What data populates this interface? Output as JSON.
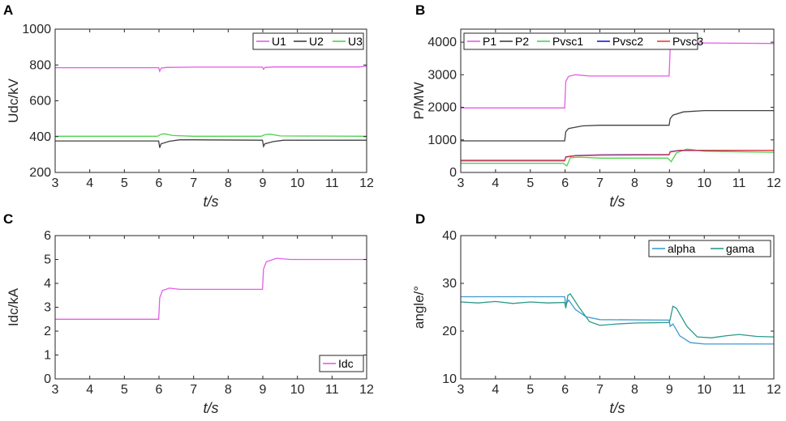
{
  "chart_data": [
    {
      "panel": "A",
      "type": "line",
      "xlabel": "t/s",
      "ylabel": "Udc/kV",
      "xlim": [
        3,
        12
      ],
      "ylim": [
        200,
        1000
      ],
      "xticks": [
        3,
        4,
        5,
        6,
        7,
        8,
        9,
        10,
        11,
        12
      ],
      "yticks": [
        200,
        400,
        600,
        800,
        1000
      ],
      "legend_position": "top-right",
      "series": [
        {
          "name": "U1",
          "color": "#e65ce6",
          "points": [
            [
              3,
              785
            ],
            [
              5.99,
              785
            ],
            [
              6.02,
              765
            ],
            [
              6.06,
              782
            ],
            [
              6.2,
              786
            ],
            [
              7,
              788
            ],
            [
              8.99,
              788
            ],
            [
              9.02,
              776
            ],
            [
              9.06,
              786
            ],
            [
              9.3,
              789
            ],
            [
              11.8,
              789
            ],
            [
              12,
              794
            ]
          ]
        },
        {
          "name": "U2",
          "color": "#404040",
          "points": [
            [
              3,
              376
            ],
            [
              5.99,
              376
            ],
            [
              6.02,
              338
            ],
            [
              6.06,
              360
            ],
            [
              6.3,
              374
            ],
            [
              6.6,
              382
            ],
            [
              7,
              382
            ],
            [
              8.99,
              380
            ],
            [
              9.02,
              345
            ],
            [
              9.06,
              360
            ],
            [
              9.3,
              372
            ],
            [
              9.6,
              380
            ],
            [
              12,
              380
            ]
          ]
        },
        {
          "name": "U3",
          "color": "#4dd24d",
          "points": [
            [
              3,
              402
            ],
            [
              5.95,
              402
            ],
            [
              6.05,
              412
            ],
            [
              6.15,
              416
            ],
            [
              6.4,
              406
            ],
            [
              7,
              402
            ],
            [
              8.95,
              402
            ],
            [
              9.05,
              410
            ],
            [
              9.2,
              414
            ],
            [
              9.5,
              404
            ],
            [
              12,
              402
            ]
          ]
        }
      ]
    },
    {
      "panel": "B",
      "type": "line",
      "xlabel": "t/s",
      "ylabel": "P/MW",
      "xlim": [
        3,
        12
      ],
      "ylim": [
        0,
        4400
      ],
      "xticks": [
        3,
        4,
        5,
        6,
        7,
        8,
        9,
        10,
        11,
        12
      ],
      "yticks": [
        0,
        1000,
        2000,
        3000,
        4000
      ],
      "legend_position": "top",
      "series": [
        {
          "name": "P1",
          "color": "#e65ce6",
          "points": [
            [
              3,
              1980
            ],
            [
              5.99,
              1980
            ],
            [
              6.02,
              2800
            ],
            [
              6.1,
              2950
            ],
            [
              6.3,
              3000
            ],
            [
              6.7,
              2960
            ],
            [
              7.5,
              2960
            ],
            [
              8.99,
              2960
            ],
            [
              9.02,
              3800
            ],
            [
              9.1,
              3920
            ],
            [
              9.4,
              3980
            ],
            [
              12,
              3960
            ]
          ]
        },
        {
          "name": "P2",
          "color": "#404040",
          "points": [
            [
              3,
              970
            ],
            [
              5.99,
              970
            ],
            [
              6.02,
              1250
            ],
            [
              6.1,
              1350
            ],
            [
              6.5,
              1430
            ],
            [
              7,
              1450
            ],
            [
              8.99,
              1450
            ],
            [
              9.02,
              1650
            ],
            [
              9.1,
              1760
            ],
            [
              9.4,
              1860
            ],
            [
              10,
              1900
            ],
            [
              12,
              1900
            ]
          ]
        },
        {
          "name": "Pvsc1",
          "color": "#4dd24d",
          "points": [
            [
              3,
              280
            ],
            [
              5.95,
              280
            ],
            [
              6.05,
              200
            ],
            [
              6.15,
              450
            ],
            [
              6.4,
              470
            ],
            [
              7,
              440
            ],
            [
              8.95,
              440
            ],
            [
              9.05,
              330
            ],
            [
              9.2,
              600
            ],
            [
              9.5,
              720
            ],
            [
              10,
              650
            ],
            [
              12,
              620
            ]
          ]
        },
        {
          "name": "Pvsc2",
          "color": "#1a1ad9",
          "points": [
            [
              3,
              370
            ],
            [
              5.99,
              370
            ],
            [
              6.02,
              480
            ],
            [
              6.3,
              520
            ],
            [
              7,
              540
            ],
            [
              8.99,
              550
            ],
            [
              9.02,
              640
            ],
            [
              9.3,
              680
            ],
            [
              12,
              680
            ]
          ]
        },
        {
          "name": "Pvsc3",
          "color": "#e63c3c",
          "points": [
            [
              3,
              355
            ],
            [
              5.99,
              355
            ],
            [
              6.02,
              470
            ],
            [
              6.3,
              510
            ],
            [
              7,
              530
            ],
            [
              8.99,
              540
            ],
            [
              9.02,
              630
            ],
            [
              9.3,
              670
            ],
            [
              12,
              680
            ]
          ]
        }
      ]
    },
    {
      "panel": "C",
      "type": "line",
      "xlabel": "t/s",
      "ylabel": "Idc/kA",
      "xlim": [
        3,
        12
      ],
      "ylim": [
        0,
        6
      ],
      "xticks": [
        3,
        4,
        5,
        6,
        7,
        8,
        9,
        10,
        11,
        12
      ],
      "yticks": [
        0,
        1,
        2,
        3,
        4,
        5,
        6
      ],
      "legend_position": "bottom-right",
      "series": [
        {
          "name": "Idc",
          "color": "#e65ce6",
          "points": [
            [
              3,
              2.5
            ],
            [
              5.99,
              2.5
            ],
            [
              6.02,
              3.4
            ],
            [
              6.1,
              3.7
            ],
            [
              6.3,
              3.8
            ],
            [
              6.6,
              3.75
            ],
            [
              8.99,
              3.75
            ],
            [
              9.02,
              4.6
            ],
            [
              9.1,
              4.9
            ],
            [
              9.4,
              5.05
            ],
            [
              9.8,
              5.0
            ],
            [
              12,
              5.0
            ]
          ]
        }
      ]
    },
    {
      "panel": "D",
      "type": "line",
      "xlabel": "t/s",
      "ylabel": "angle/°",
      "xlim": [
        3,
        12
      ],
      "ylim": [
        10,
        40
      ],
      "xticks": [
        3,
        4,
        5,
        6,
        7,
        8,
        9,
        10,
        11,
        12
      ],
      "yticks": [
        10,
        20,
        30,
        40
      ],
      "legend_position": "top-right",
      "series": [
        {
          "name": "alpha",
          "color": "#3d9ad6",
          "points": [
            [
              3,
              27.2
            ],
            [
              5.99,
              27.2
            ],
            [
              6.02,
              25.5
            ],
            [
              6.1,
              26.5
            ],
            [
              6.3,
              24.5
            ],
            [
              6.6,
              23
            ],
            [
              7,
              22.4
            ],
            [
              8.99,
              22.3
            ],
            [
              9.02,
              21
            ],
            [
              9.1,
              21.5
            ],
            [
              9.3,
              19
            ],
            [
              9.6,
              17.6
            ],
            [
              10,
              17.3
            ],
            [
              12,
              17.3
            ]
          ]
        },
        {
          "name": "gama",
          "color": "#2a9a8a",
          "points": [
            [
              3,
              26.1
            ],
            [
              3.5,
              25.9
            ],
            [
              4,
              26.2
            ],
            [
              4.5,
              25.8
            ],
            [
              5,
              26.1
            ],
            [
              5.5,
              25.9
            ],
            [
              5.99,
              26.0
            ],
            [
              6.02,
              24.8
            ],
            [
              6.08,
              27.5
            ],
            [
              6.15,
              27.8
            ],
            [
              6.4,
              25
            ],
            [
              6.7,
              22
            ],
            [
              7,
              21.2
            ],
            [
              7.5,
              21.5
            ],
            [
              8,
              21.7
            ],
            [
              8.99,
              21.8
            ],
            [
              9.02,
              22.5
            ],
            [
              9.1,
              25.2
            ],
            [
              9.2,
              24.8
            ],
            [
              9.5,
              21
            ],
            [
              9.8,
              18.8
            ],
            [
              10.2,
              18.6
            ],
            [
              10.6,
              19
            ],
            [
              11,
              19.3
            ],
            [
              11.5,
              18.9
            ],
            [
              12,
              18.8
            ]
          ]
        }
      ]
    }
  ]
}
